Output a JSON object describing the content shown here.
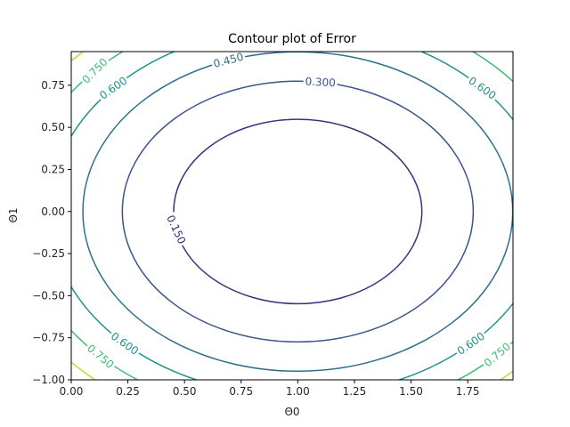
{
  "chart_data": {
    "type": "contour",
    "title": "Contour plot of Error",
    "xlabel": "Θ0",
    "ylabel": "Θ1",
    "xlim": [
      0.0,
      1.95
    ],
    "ylim": [
      -1.0,
      0.95
    ],
    "xticks": [
      0.0,
      0.25,
      0.5,
      0.75,
      1.0,
      1.25,
      1.5,
      1.75
    ],
    "xtick_labels": [
      "0.00",
      "0.25",
      "0.50",
      "0.75",
      "1.00",
      "1.25",
      "1.50",
      "1.75"
    ],
    "yticks": [
      -1.0,
      -0.75,
      -0.5,
      -0.25,
      0.0,
      0.25,
      0.5,
      0.75
    ],
    "ytick_labels": [
      "−1.00",
      "−0.75",
      "−0.50",
      "−0.25",
      "0.00",
      "0.25",
      "0.50",
      "0.75"
    ],
    "function": "(x - 1)^2 / 2 + y^2 / 2",
    "center": [
      1.0,
      0.0
    ],
    "levels": [
      {
        "value": 0.15,
        "color": "#3e2f7e"
      },
      {
        "value": 0.3,
        "color": "#3b538b"
      },
      {
        "value": 0.45,
        "color": "#2e6f8e"
      },
      {
        "value": 0.6,
        "color": "#21918c"
      },
      {
        "value": 0.75,
        "color": "#3fbc73"
      },
      {
        "value": 0.9,
        "color": "#b5de2b"
      }
    ],
    "contour_labels": [
      {
        "text": "0.150",
        "level": 0.15,
        "x": 0.5,
        "y": -0.1,
        "angle": 65
      },
      {
        "text": "0.300",
        "level": 0.3,
        "x": 1.1,
        "y": 0.77,
        "angle": 3
      },
      {
        "text": "0.450",
        "level": 0.45,
        "x": 0.7,
        "y": 0.88,
        "angle": -15
      },
      {
        "text": "0.600",
        "level": 0.6,
        "x": 0.2,
        "y": 0.72,
        "angle": -35
      },
      {
        "text": "0.600",
        "level": 0.6,
        "x": 1.8,
        "y": 0.72,
        "angle": 35
      },
      {
        "text": "0.600",
        "level": 0.6,
        "x": 0.25,
        "y": -0.77,
        "angle": 35
      },
      {
        "text": "0.600",
        "level": 0.6,
        "x": 1.75,
        "y": -0.77,
        "angle": -35
      },
      {
        "text": "0.750",
        "level": 0.75,
        "x": 0.1,
        "y": 0.84,
        "angle": -45
      },
      {
        "text": "0.750",
        "level": 0.75,
        "x": 0.12,
        "y": -0.87,
        "angle": 40
      },
      {
        "text": "0.750",
        "level": 0.75,
        "x": 1.9,
        "y": -0.87,
        "angle": -40
      }
    ]
  }
}
